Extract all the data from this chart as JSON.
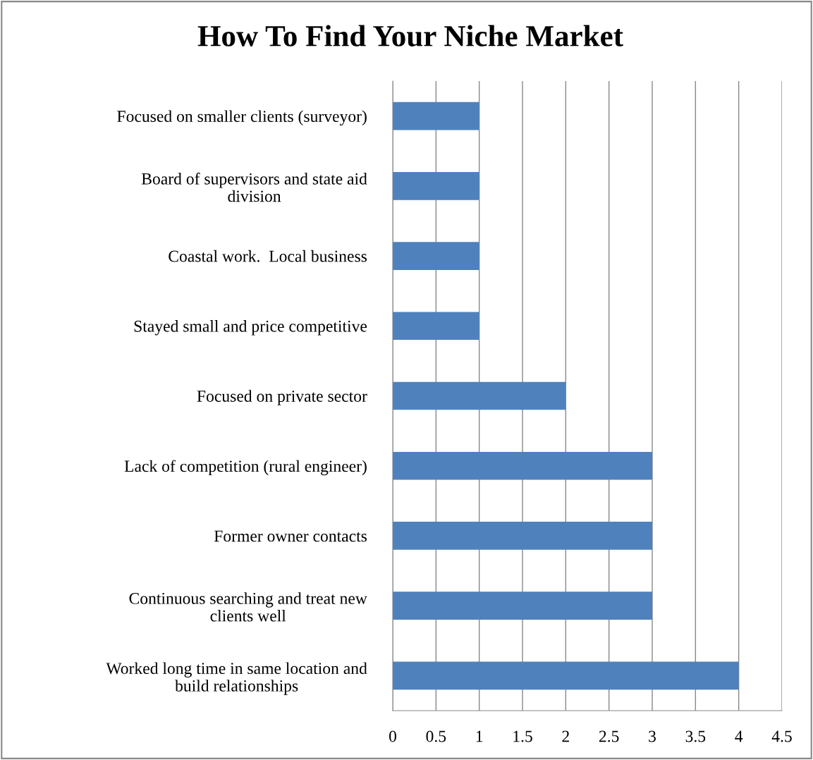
{
  "chart_data": {
    "type": "bar",
    "orientation": "horizontal",
    "title": "How To Find Your Niche Market",
    "categories": [
      "Focused on smaller clients (surveyor)",
      "Board of supervisors and state aid division",
      "Coastal work.  Local business",
      "Stayed small and price competitive",
      "Focused on private sector",
      "Lack of competition (rural engineer)",
      "Former owner contacts",
      "Continuous searching and treat new clients well",
      "Worked long time in same location and build relationships"
    ],
    "values": [
      1,
      1,
      1,
      1,
      2,
      3,
      3,
      3,
      4
    ],
    "color": "#4f81bd",
    "xlim": [
      0,
      4.5
    ],
    "xticks": [
      0,
      0.5,
      1,
      1.5,
      2,
      2.5,
      3,
      3.5,
      4,
      4.5
    ],
    "grid": "x"
  }
}
